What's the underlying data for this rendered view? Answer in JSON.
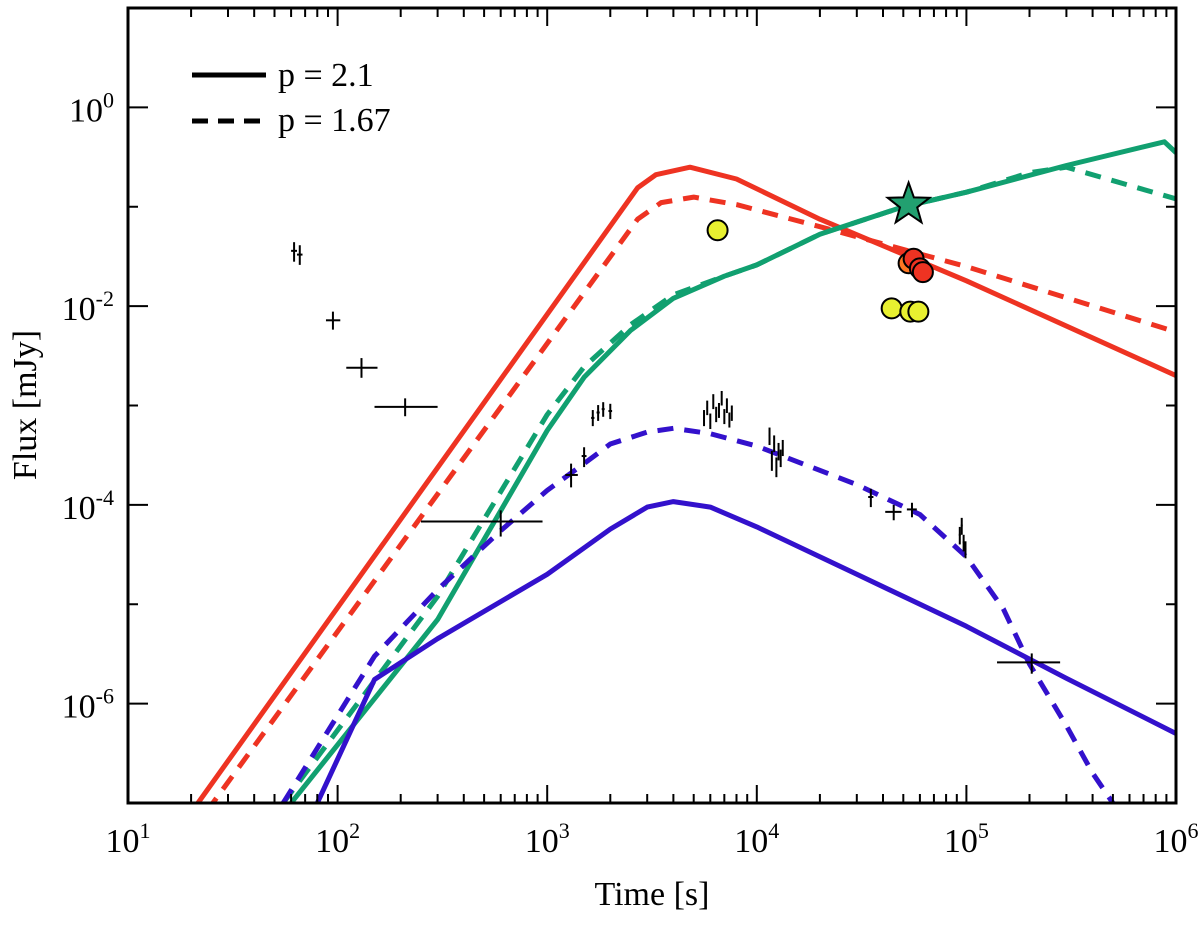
{
  "chart_data": {
    "type": "line",
    "title": "",
    "xlabel": "Time [s]",
    "ylabel": "Flux [mJy]",
    "xscale": "log",
    "yscale": "log",
    "xlim": [
      10,
      1000000
    ],
    "ylim": [
      1e-07,
      10
    ],
    "x_ticks": [
      {
        "base": "10",
        "exp": "1"
      },
      {
        "base": "10",
        "exp": "2"
      },
      {
        "base": "10",
        "exp": "3"
      },
      {
        "base": "10",
        "exp": "4"
      },
      {
        "base": "10",
        "exp": "5"
      },
      {
        "base": "10",
        "exp": "6"
      }
    ],
    "y_ticks": [
      {
        "base": "10",
        "exp": "-6",
        "value": 1e-06
      },
      {
        "base": "10",
        "exp": "-4",
        "value": 0.0001
      },
      {
        "base": "10",
        "exp": "-2",
        "value": 0.01
      },
      {
        "base": "10",
        "exp": "0",
        "value": 1
      }
    ],
    "legend": {
      "placement": "top-left",
      "entries": [
        {
          "label": "p = 2.1",
          "style": "solid"
        },
        {
          "label": "p = 1.67",
          "style": "dashed"
        }
      ]
    },
    "colors": {
      "red": "#ee3322",
      "green": "#11a070",
      "blue": "#3311cc",
      "yellow": "#e8f030",
      "orange": "#ff7722",
      "star": "#22a070"
    },
    "series": [
      {
        "name": "red p=2.1",
        "color": "#ee3322",
        "style": "solid",
        "x": [
          20,
          2700,
          3300,
          4800,
          8000,
          20000,
          100000,
          1000000
        ],
        "y": [
          8e-08,
          0.155,
          0.21,
          0.25,
          0.19,
          0.075,
          0.018,
          0.002
        ]
      },
      {
        "name": "red p=1.67",
        "color": "#ee3322",
        "style": "dashed",
        "x": [
          20,
          2700,
          3500,
          5000,
          8000,
          20000,
          100000,
          1000000
        ],
        "y": [
          5e-08,
          0.075,
          0.11,
          0.125,
          0.105,
          0.063,
          0.025,
          0.0055
        ]
      },
      {
        "name": "green p=2.1",
        "color": "#11a070",
        "style": "solid",
        "x": [
          60,
          300,
          1000,
          1500,
          2500,
          4000,
          7000,
          10000,
          20000,
          50000,
          100000,
          300000,
          880000,
          1000000
        ],
        "y": [
          1e-07,
          7e-06,
          0.00056,
          0.00192,
          0.0057,
          0.012,
          0.02,
          0.026,
          0.053,
          0.1,
          0.14,
          0.26,
          0.45,
          0.35
        ]
      },
      {
        "name": "green p=1.67",
        "color": "#11a070",
        "style": "dashed",
        "x": [
          55,
          300,
          1000,
          1500,
          2500,
          4000,
          7000,
          10000,
          20000,
          50000,
          100000,
          200000,
          300000,
          1000000
        ],
        "y": [
          1e-07,
          1.2e-05,
          0.00081,
          0.00245,
          0.0065,
          0.013,
          0.02,
          0.026,
          0.053,
          0.1,
          0.14,
          0.22,
          0.25,
          0.12
        ]
      },
      {
        "name": "blue p=2.1",
        "color": "#3311cc",
        "style": "solid",
        "x": [
          80,
          150,
          300,
          1000,
          2000,
          3000,
          4000,
          6000,
          10000,
          30000,
          100000,
          300000,
          1000000
        ],
        "y": [
          1e-07,
          1.75e-06,
          4.5e-06,
          2e-05,
          5.7e-05,
          9.5e-05,
          0.000108,
          9.5e-05,
          6e-05,
          2e-05,
          6e-06,
          1.8e-06,
          5e-07
        ]
      },
      {
        "name": "blue p=1.67",
        "color": "#3311cc",
        "style": "dashed",
        "x": [
          55,
          150,
          300,
          600,
          1000,
          1500,
          2000,
          3000,
          4000,
          6000,
          10000,
          30000,
          60000,
          100000,
          150000,
          200000,
          300000,
          400000,
          500000
        ],
        "y": [
          1e-07,
          3e-06,
          1.4e-05,
          5.5e-05,
          0.00014,
          0.00026,
          0.00041,
          0.00054,
          0.00059,
          0.00052,
          0.00039,
          0.00016,
          8e-05,
          3e-05,
          9e-06,
          2.5e-06,
          6e-07,
          2e-07,
          1e-07
        ]
      }
    ],
    "markers": [
      {
        "shape": "circle",
        "color": "#e8f030",
        "x": 6500,
        "y": 0.058
      },
      {
        "shape": "circle",
        "color": "#e8f030",
        "x": 44000,
        "y": 0.0095
      },
      {
        "shape": "circle",
        "color": "#e8f030",
        "x": 54000,
        "y": 0.0088
      },
      {
        "shape": "circle",
        "color": "#e8f030",
        "x": 59000,
        "y": 0.0088
      },
      {
        "shape": "circle",
        "color": "#ff7722",
        "x": 53000,
        "y": 0.027
      },
      {
        "shape": "circle",
        "color": "#ee3322",
        "x": 56000,
        "y": 0.03
      },
      {
        "shape": "circle",
        "color": "#ee3322",
        "x": 60000,
        "y": 0.024
      },
      {
        "shape": "circle",
        "color": "#ee3322",
        "x": 62000,
        "y": 0.022
      },
      {
        "shape": "star",
        "color": "#22a070",
        "x": 53000,
        "y": 0.105
      }
    ],
    "xray_points": [
      {
        "x": 62,
        "y": 0.036,
        "xlo": 60,
        "xhi": 64,
        "ylo": 0.028,
        "yhi": 0.044
      },
      {
        "x": 66,
        "y": 0.033,
        "xlo": 64,
        "xhi": 68,
        "ylo": 0.026,
        "yhi": 0.041
      },
      {
        "x": 95,
        "y": 0.0072,
        "xlo": 88,
        "xhi": 103,
        "ylo": 0.0058,
        "yhi": 0.0088
      },
      {
        "x": 130,
        "y": 0.0024,
        "xlo": 110,
        "xhi": 155,
        "ylo": 0.0019,
        "yhi": 0.003
      },
      {
        "x": 210,
        "y": 0.00097,
        "xlo": 150,
        "xhi": 300,
        "ylo": 0.00078,
        "yhi": 0.00118
      },
      {
        "x": 600,
        "y": 6.8e-05,
        "xlo": 250,
        "xhi": 950,
        "ylo": 4.8e-05,
        "yhi": 8.8e-05
      },
      {
        "x": 1300,
        "y": 0.0002,
        "xlo": 1220,
        "xhi": 1400,
        "ylo": 0.00015,
        "yhi": 0.00026
      },
      {
        "x": 1500,
        "y": 0.00031,
        "xlo": 1460,
        "xhi": 1540,
        "ylo": 0.00024,
        "yhi": 0.00038
      },
      {
        "x": 1650,
        "y": 0.00075,
        "xlo": 1620,
        "xhi": 1680,
        "ylo": 0.00062,
        "yhi": 0.0009
      },
      {
        "x": 1750,
        "y": 0.00085,
        "xlo": 1720,
        "xhi": 1780,
        "ylo": 0.0007,
        "yhi": 0.00101
      },
      {
        "x": 1850,
        "y": 0.00092,
        "xlo": 1820,
        "xhi": 1880,
        "ylo": 0.00077,
        "yhi": 0.00108
      },
      {
        "x": 2000,
        "y": 0.00088,
        "xlo": 1960,
        "xhi": 2040,
        "ylo": 0.00073,
        "yhi": 0.00104
      },
      {
        "x": 5600,
        "y": 0.00075,
        "xlo": 5550,
        "xhi": 5650,
        "ylo": 0.00062,
        "yhi": 0.0009
      },
      {
        "x": 5800,
        "y": 0.00095,
        "xlo": 5750,
        "xhi": 5850,
        "ylo": 0.0008,
        "yhi": 0.00112
      },
      {
        "x": 6000,
        "y": 0.0007,
        "xlo": 5950,
        "xhi": 6050,
        "ylo": 0.00058,
        "yhi": 0.00083
      },
      {
        "x": 6200,
        "y": 0.0011,
        "xlo": 6150,
        "xhi": 6250,
        "ylo": 0.00092,
        "yhi": 0.0013
      },
      {
        "x": 6400,
        "y": 0.00082,
        "xlo": 6350,
        "xhi": 6450,
        "ylo": 0.00068,
        "yhi": 0.00097
      },
      {
        "x": 6600,
        "y": 0.0009,
        "xlo": 6550,
        "xhi": 6650,
        "ylo": 0.00075,
        "yhi": 0.00106
      },
      {
        "x": 6800,
        "y": 0.0012,
        "xlo": 6750,
        "xhi": 6850,
        "ylo": 0.001,
        "yhi": 0.0014
      },
      {
        "x": 7000,
        "y": 0.00078,
        "xlo": 6950,
        "xhi": 7050,
        "ylo": 0.00065,
        "yhi": 0.00092
      },
      {
        "x": 7200,
        "y": 0.001,
        "xlo": 7150,
        "xhi": 7250,
        "ylo": 0.00084,
        "yhi": 0.00118
      },
      {
        "x": 7400,
        "y": 0.00072,
        "xlo": 7350,
        "xhi": 7450,
        "ylo": 0.0006,
        "yhi": 0.00085
      },
      {
        "x": 7600,
        "y": 0.00085,
        "xlo": 7550,
        "xhi": 7650,
        "ylo": 0.0007,
        "yhi": 0.001
      },
      {
        "x": 11500,
        "y": 0.0005,
        "xlo": 11400,
        "xhi": 11600,
        "ylo": 0.0004,
        "yhi": 0.0006
      },
      {
        "x": 11800,
        "y": 0.00028,
        "xlo": 11700,
        "xhi": 11900,
        "ylo": 0.00022,
        "yhi": 0.00035
      },
      {
        "x": 12100,
        "y": 0.00042,
        "xlo": 12000,
        "xhi": 12200,
        "ylo": 0.00034,
        "yhi": 0.0005
      },
      {
        "x": 12400,
        "y": 0.00024,
        "xlo": 12300,
        "xhi": 12500,
        "ylo": 0.00019,
        "yhi": 0.0003
      },
      {
        "x": 12700,
        "y": 0.00035,
        "xlo": 12600,
        "xhi": 12800,
        "ylo": 0.00028,
        "yhi": 0.00042
      },
      {
        "x": 13000,
        "y": 0.0003,
        "xlo": 12900,
        "xhi": 13100,
        "ylo": 0.00024,
        "yhi": 0.00036
      },
      {
        "x": 13300,
        "y": 0.00038,
        "xlo": 13200,
        "xhi": 13400,
        "ylo": 0.00031,
        "yhi": 0.00045
      },
      {
        "x": 35000,
        "y": 0.00012,
        "xlo": 34000,
        "xhi": 36000,
        "ylo": 9.5e-05,
        "yhi": 0.000145
      },
      {
        "x": 45000,
        "y": 8.5e-05,
        "xlo": 41000,
        "xhi": 49000,
        "ylo": 7e-05,
        "yhi": 0.0001
      },
      {
        "x": 55000,
        "y": 9e-05,
        "xlo": 52000,
        "xhi": 58000,
        "ylo": 7.5e-05,
        "yhi": 0.000105
      },
      {
        "x": 93000,
        "y": 5e-05,
        "xlo": 92000,
        "xhi": 94000,
        "ylo": 4e-05,
        "yhi": 6e-05
      },
      {
        "x": 95000,
        "y": 6.2e-05,
        "xlo": 94000,
        "xhi": 96000,
        "ylo": 5e-05,
        "yhi": 7.4e-05
      },
      {
        "x": 97000,
        "y": 4.2e-05,
        "xlo": 96000,
        "xhi": 98000,
        "ylo": 3.4e-05,
        "yhi": 5e-05
      },
      {
        "x": 99000,
        "y": 3.6e-05,
        "xlo": 98000,
        "xhi": 100000,
        "ylo": 2.9e-05,
        "yhi": 4.3e-05
      },
      {
        "x": 205000,
        "y": 2.6e-06,
        "xlo": 140000,
        "xhi": 280000,
        "ylo": 2e-06,
        "yhi": 3.2e-06
      }
    ]
  }
}
